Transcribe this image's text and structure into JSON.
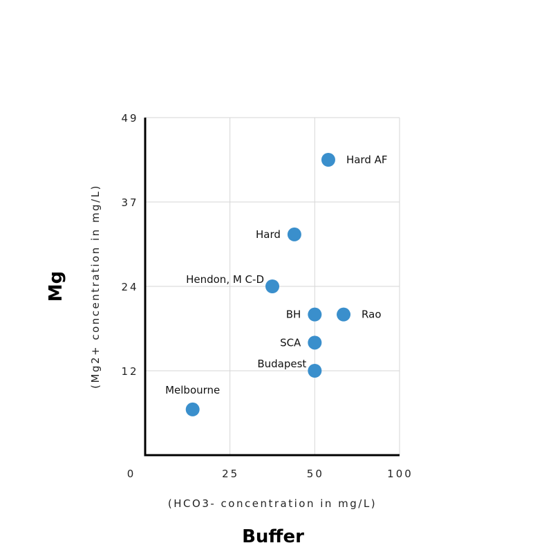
{
  "chart_data": {
    "type": "scatter",
    "title": "",
    "xlabel": "Buffer",
    "xlabel_sub": "(HCO3- concentration in mg/L)",
    "ylabel": "Mg",
    "ylabel_sub": "(Mg2+ concentration in mg/L)",
    "x_ticks": [
      0,
      25,
      50,
      100
    ],
    "y_ticks": [
      0,
      12,
      24,
      37,
      49
    ],
    "y_tick_labels_shown": [
      "12",
      "24",
      "37",
      "49"
    ],
    "x_tick_labels_shown": [
      "0",
      "25",
      "50",
      "100"
    ],
    "xlim": [
      0,
      100
    ],
    "ylim": [
      0,
      49
    ],
    "grid": true,
    "point_color": "#3a8fcc",
    "points": [
      {
        "name": "Hard AF",
        "x": 58,
        "y": 43,
        "label_position": "right"
      },
      {
        "name": "Hard",
        "x": 44,
        "y": 32,
        "label_position": "left"
      },
      {
        "name": "Hendon, M C-D",
        "x": 37.5,
        "y": 24,
        "label_position": "upper-left"
      },
      {
        "name": "BH",
        "x": 50,
        "y": 20,
        "label_position": "left"
      },
      {
        "name": "Rao",
        "x": 67,
        "y": 20,
        "label_position": "right"
      },
      {
        "name": "SCA",
        "x": 50,
        "y": 16,
        "label_position": "left"
      },
      {
        "name": "Budapest",
        "x": 50,
        "y": 12,
        "label_position": "upper-left"
      },
      {
        "name": "Melbourne",
        "x": 14,
        "y": 6.5,
        "label_position": "above"
      }
    ]
  }
}
